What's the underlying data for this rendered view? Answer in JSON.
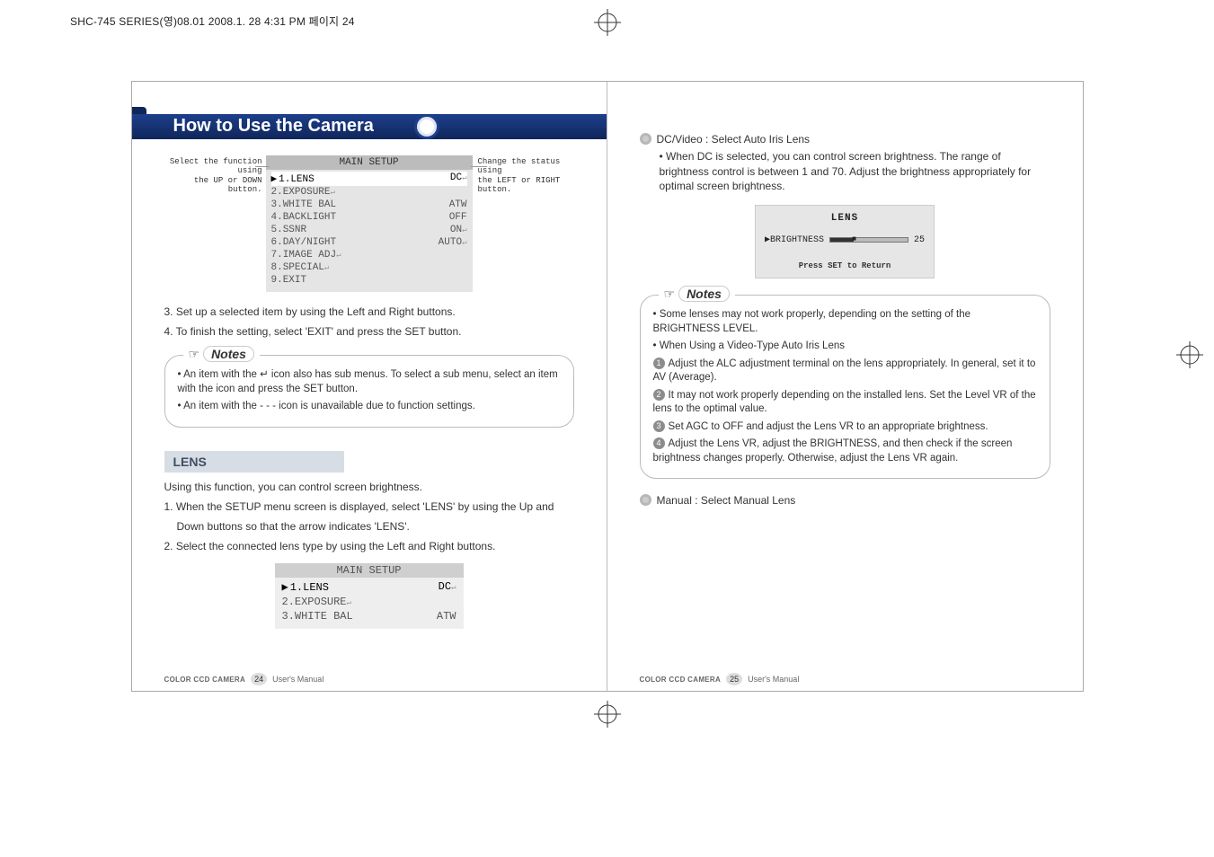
{
  "header_line": "SHC-745 SERIES(영)08.01  2008.1. 28 4:31 PM  페이지 24",
  "left": {
    "title": "How to Use the Camera",
    "setup": {
      "title": "MAIN SETUP",
      "rows": [
        {
          "label": "1.LENS",
          "value": "DC↵",
          "selected": true
        },
        {
          "label": "2.EXPOSURE↵",
          "value": ""
        },
        {
          "label": "3.WHITE BAL",
          "value": "ATW"
        },
        {
          "label": "4.BACKLIGHT",
          "value": "OFF"
        },
        {
          "label": "5.SSNR",
          "value": "ON↵"
        },
        {
          "label": "6.DAY/NIGHT",
          "value": "AUTO↵"
        },
        {
          "label": "7.IMAGE ADJ↵",
          "value": ""
        },
        {
          "label": "8.SPECIAL↵",
          "value": ""
        },
        {
          "label": "9.EXIT",
          "value": ""
        }
      ]
    },
    "callout_left_1": "Select the function using",
    "callout_left_2": "the UP or DOWN button.",
    "callout_right_1": "Change the status using",
    "callout_right_2": "the LEFT or RIGHT button.",
    "step3": "3. Set up a selected item by using the Left and Right buttons.",
    "step4": "4. To finish the setting, select 'EXIT' and press the SET button.",
    "notes_label": "Notes",
    "notes_p1": "• An item with the ↵ icon also has sub menus. To select a sub menu, select an item with the icon and press the SET button.",
    "notes_p2": "• An item with the - - - icon is unavailable due to function settings.",
    "section_lens": "LENS",
    "lens_intro": "Using this function, you can control screen brightness.",
    "lens_1a": "1. When the SETUP menu screen is displayed, select 'LENS' by using the Up and",
    "lens_1b": "Down buttons so that the arrow indicates 'LENS'.",
    "lens_2": "2. Select the connected lens type by using the Left and Right buttons.",
    "mini": {
      "title": "MAIN SETUP",
      "rows": [
        {
          "label": "1.LENS",
          "value": "DC↵",
          "selected": true
        },
        {
          "label": "2.EXPOSURE↵",
          "value": ""
        },
        {
          "label": "3.WHITE BAL",
          "value": "ATW"
        }
      ]
    },
    "footer_prod": "COLOR CCD CAMERA",
    "footer_page": "24",
    "footer_txt": "User's Manual"
  },
  "right": {
    "dc_title": "DC/Video : Select Auto Iris Lens",
    "dc_p": "• When DC is selected, you can control screen brightness. The range of brightness control is between 1 and 70. Adjust the brightness appropriately for optimal screen brightness.",
    "osd": {
      "title": "LENS",
      "brightness_label": "▶BRIGHTNESS",
      "brightness_val": "25",
      "ret": "Press SET to Return"
    },
    "notes_label": "Notes",
    "notes_p1": "• Some lenses may not work properly, depending on the setting of the BRIGHTNESS LEVEL.",
    "notes_p2": "• When Using a Video-Type Auto Iris Lens",
    "n1": "Adjust the ALC adjustment terminal on the lens appropriately. In general, set it to AV (Average).",
    "n2": "It may not work properly depending on the installed lens. Set the Level VR of the lens to the optimal value.",
    "n3": "Set AGC to OFF and adjust the Lens VR to an appropriate brightness.",
    "n4": "Adjust the Lens VR, adjust the BRIGHTNESS, and then check if the screen brightness changes properly. Otherwise, adjust the Lens VR again.",
    "manual": "Manual : Select Manual Lens",
    "footer_prod": "COLOR CCD CAMERA",
    "footer_page": "25",
    "footer_txt": "User's Manual"
  }
}
